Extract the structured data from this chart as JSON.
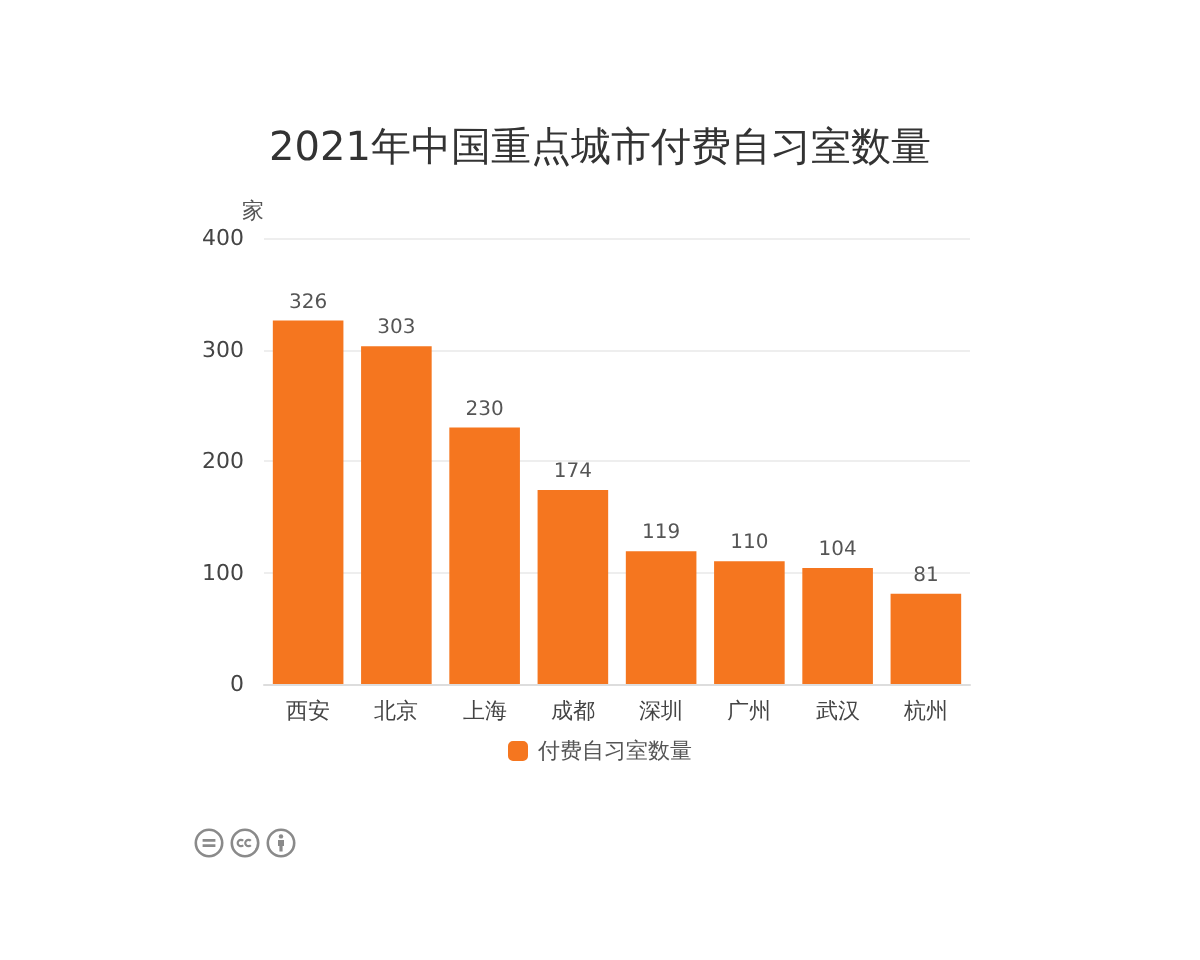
{
  "chart_data": {
    "type": "bar",
    "title": "2021年中国重点城市付费自习室数量",
    "ylabel": "家",
    "categories": [
      "西安",
      "北京",
      "上海",
      "成都",
      "深圳",
      "广州",
      "武汉",
      "杭州"
    ],
    "series": [
      {
        "name": "付费自习室数量",
        "color": "#f5761f",
        "values": [
          326,
          303,
          230,
          174,
          119,
          110,
          104,
          81
        ]
      }
    ],
    "ylim": [
      0,
      400
    ],
    "yticks": [
      0,
      100,
      200,
      300,
      400
    ],
    "grid": "y",
    "legend": "bottom",
    "data_labels": true
  }
}
